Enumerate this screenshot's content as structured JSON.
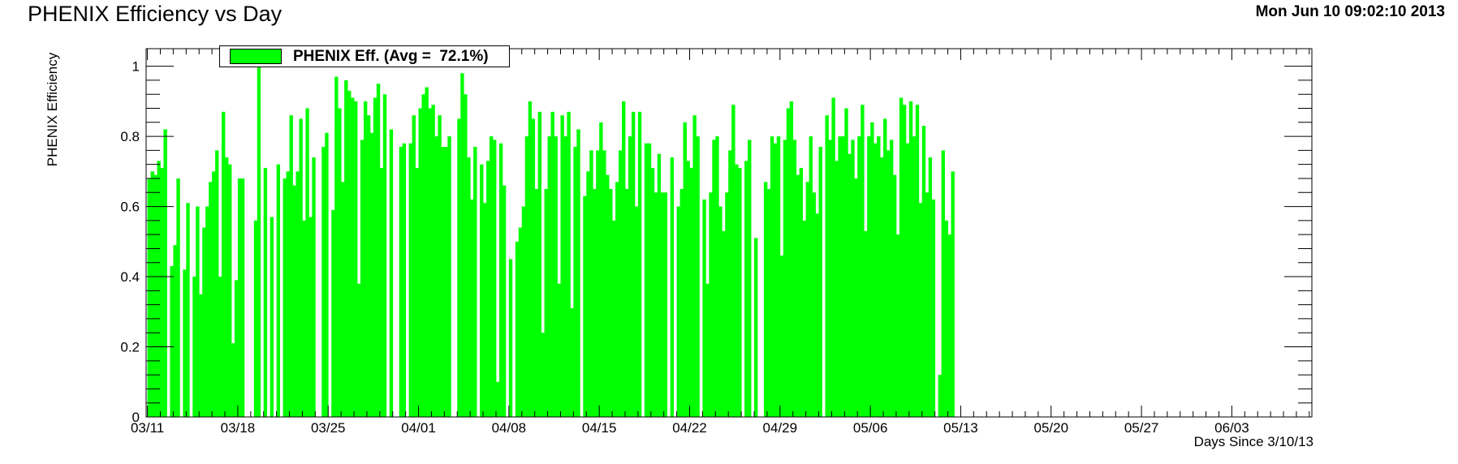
{
  "header": {
    "title": "PHENIX Efficiency vs Day",
    "datestamp": "Mon Jun 10 09:02:10 2013"
  },
  "chart_data": {
    "type": "bar",
    "title": "PHENIX Efficiency vs Day",
    "xlabel": "Days Since 3/10/13",
    "ylabel": "PHENIX Efficiency",
    "xlim": [
      0.9,
      91.2
    ],
    "ylim": [
      0,
      1.05
    ],
    "grid": false,
    "legend": {
      "placement": "top-left",
      "label": "PHENIX Eff. (Avg =  72.1%)",
      "color": "#00ff00"
    },
    "x_ticks": [
      {
        "value": 1,
        "label": "03/11"
      },
      {
        "value": 8,
        "label": "03/18"
      },
      {
        "value": 15,
        "label": "03/25"
      },
      {
        "value": 22,
        "label": "04/01"
      },
      {
        "value": 29,
        "label": "04/08"
      },
      {
        "value": 36,
        "label": "04/15"
      },
      {
        "value": 43,
        "label": "04/22"
      },
      {
        "value": 50,
        "label": "04/29"
      },
      {
        "value": 57,
        "label": "05/06"
      },
      {
        "value": 64,
        "label": "05/13"
      },
      {
        "value": 71,
        "label": "05/20"
      },
      {
        "value": 78,
        "label": "05/27"
      },
      {
        "value": 85,
        "label": "06/03"
      }
    ],
    "y_ticks": [
      {
        "value": 0,
        "label": "0"
      },
      {
        "value": 0.2,
        "label": "0.2"
      },
      {
        "value": 0.4,
        "label": "0.4"
      },
      {
        "value": 0.6,
        "label": "0.6"
      },
      {
        "value": 0.8,
        "label": "0.8"
      },
      {
        "value": 1,
        "label": "1"
      }
    ],
    "series": [
      {
        "color": "#00ff00",
        "points": [
          [
            1.0,
            0.68
          ],
          [
            1.25,
            0.7
          ],
          [
            1.5,
            0.69
          ],
          [
            1.75,
            0.73
          ],
          [
            2.0,
            0.71
          ],
          [
            2.25,
            0.82
          ],
          [
            2.5,
            0.0
          ],
          [
            2.75,
            0.43
          ],
          [
            3.0,
            0.49
          ],
          [
            3.25,
            0.68
          ],
          [
            3.5,
            0.0
          ],
          [
            3.75,
            0.42
          ],
          [
            4.0,
            0.61
          ],
          [
            4.25,
            0.0
          ],
          [
            4.5,
            0.4
          ],
          [
            4.75,
            0.6
          ],
          [
            5.0,
            0.35
          ],
          [
            5.25,
            0.54
          ],
          [
            5.5,
            0.6
          ],
          [
            5.75,
            0.67
          ],
          [
            6.0,
            0.7
          ],
          [
            6.25,
            0.76
          ],
          [
            6.5,
            0.4
          ],
          [
            6.75,
            0.87
          ],
          [
            7.0,
            0.74
          ],
          [
            7.25,
            0.72
          ],
          [
            7.5,
            0.21
          ],
          [
            7.75,
            0.39
          ],
          [
            8.0,
            0.68
          ],
          [
            8.25,
            0.68
          ],
          [
            8.5,
            0.0
          ],
          [
            8.75,
            0.0
          ],
          [
            9.0,
            0.0
          ],
          [
            9.25,
            0.56
          ],
          [
            9.5,
            1.0
          ],
          [
            9.75,
            0.0
          ],
          [
            10.0,
            0.71
          ],
          [
            10.25,
            0.0
          ],
          [
            10.5,
            0.57
          ],
          [
            10.75,
            0.0
          ],
          [
            11.0,
            0.72
          ],
          [
            11.25,
            0.0
          ],
          [
            11.5,
            0.68
          ],
          [
            11.75,
            0.7
          ],
          [
            12.0,
            0.86
          ],
          [
            12.25,
            0.66
          ],
          [
            12.5,
            0.7
          ],
          [
            12.75,
            0.85
          ],
          [
            13.0,
            0.56
          ],
          [
            13.25,
            0.88
          ],
          [
            13.5,
            0.57
          ],
          [
            13.75,
            0.74
          ],
          [
            14.0,
            0.0
          ],
          [
            14.25,
            0.0
          ],
          [
            14.5,
            0.77
          ],
          [
            14.75,
            0.81
          ],
          [
            15.0,
            0.0
          ],
          [
            15.25,
            0.59
          ],
          [
            15.5,
            0.97
          ],
          [
            15.75,
            0.88
          ],
          [
            16.0,
            0.67
          ],
          [
            16.25,
            0.96
          ],
          [
            16.5,
            0.93
          ],
          [
            16.75,
            0.91
          ],
          [
            17.0,
            0.9
          ],
          [
            17.25,
            0.38
          ],
          [
            17.5,
            0.79
          ],
          [
            17.75,
            0.9
          ],
          [
            18.0,
            0.86
          ],
          [
            18.25,
            0.81
          ],
          [
            18.5,
            0.91
          ],
          [
            18.75,
            0.95
          ],
          [
            19.0,
            0.71
          ],
          [
            19.25,
            0.92
          ],
          [
            19.5,
            0.0
          ],
          [
            19.75,
            0.82
          ],
          [
            20.0,
            0.0
          ],
          [
            20.25,
            0.0
          ],
          [
            20.5,
            0.77
          ],
          [
            20.75,
            0.78
          ],
          [
            21.0,
            0.0
          ],
          [
            21.25,
            0.78
          ],
          [
            21.5,
            0.86
          ],
          [
            21.75,
            0.71
          ],
          [
            22.0,
            0.88
          ],
          [
            22.25,
            0.92
          ],
          [
            22.5,
            0.94
          ],
          [
            22.75,
            0.88
          ],
          [
            23.0,
            0.89
          ],
          [
            23.25,
            0.8
          ],
          [
            23.5,
            0.86
          ],
          [
            23.75,
            0.77
          ],
          [
            24.0,
            0.77
          ],
          [
            24.25,
            0.8
          ],
          [
            24.5,
            0.0
          ],
          [
            24.75,
            0.0
          ],
          [
            25.0,
            0.85
          ],
          [
            25.25,
            0.98
          ],
          [
            25.5,
            0.92
          ],
          [
            25.75,
            0.74
          ],
          [
            26.0,
            0.62
          ],
          [
            26.25,
            0.77
          ],
          [
            26.5,
            0.0
          ],
          [
            26.75,
            0.72
          ],
          [
            27.0,
            0.61
          ],
          [
            27.25,
            0.73
          ],
          [
            27.5,
            0.8
          ],
          [
            27.75,
            0.79
          ],
          [
            28.0,
            0.1
          ],
          [
            28.25,
            0.78
          ],
          [
            28.5,
            0.66
          ],
          [
            28.75,
            0.0
          ],
          [
            29.0,
            0.45
          ],
          [
            29.25,
            0.0
          ],
          [
            29.5,
            0.5
          ],
          [
            29.75,
            0.54
          ],
          [
            30.0,
            0.6
          ],
          [
            30.25,
            0.8
          ],
          [
            30.5,
            0.9
          ],
          [
            30.75,
            0.85
          ],
          [
            31.0,
            0.65
          ],
          [
            31.25,
            0.87
          ],
          [
            31.5,
            0.24
          ],
          [
            31.75,
            0.65
          ],
          [
            32.0,
            0.8
          ],
          [
            32.25,
            0.87
          ],
          [
            32.5,
            0.8
          ],
          [
            32.75,
            0.38
          ],
          [
            33.0,
            0.86
          ],
          [
            33.25,
            0.8
          ],
          [
            33.5,
            0.87
          ],
          [
            33.75,
            0.31
          ],
          [
            34.0,
            0.77
          ],
          [
            34.25,
            0.82
          ],
          [
            34.5,
            0.0
          ],
          [
            34.75,
            0.63
          ],
          [
            35.0,
            0.7
          ],
          [
            35.25,
            0.76
          ],
          [
            35.5,
            0.65
          ],
          [
            35.75,
            0.76
          ],
          [
            36.0,
            0.84
          ],
          [
            36.25,
            0.76
          ],
          [
            36.5,
            0.69
          ],
          [
            36.75,
            0.65
          ],
          [
            37.0,
            0.56
          ],
          [
            37.25,
            0.67
          ],
          [
            37.5,
            0.76
          ],
          [
            37.75,
            0.9
          ],
          [
            38.0,
            0.65
          ],
          [
            38.25,
            0.8
          ],
          [
            38.5,
            0.87
          ],
          [
            38.75,
            0.6
          ],
          [
            39.0,
            0.87
          ],
          [
            39.25,
            0.0
          ],
          [
            39.5,
            0.78
          ],
          [
            39.75,
            0.78
          ],
          [
            40.0,
            0.71
          ],
          [
            40.25,
            0.64
          ],
          [
            40.5,
            0.75
          ],
          [
            40.75,
            0.64
          ],
          [
            41.0,
            0.64
          ],
          [
            41.25,
            0.0
          ],
          [
            41.5,
            0.74
          ],
          [
            41.75,
            0.0
          ],
          [
            42.0,
            0.6
          ],
          [
            42.25,
            0.65
          ],
          [
            42.5,
            0.84
          ],
          [
            42.75,
            0.73
          ],
          [
            43.0,
            0.71
          ],
          [
            43.25,
            0.86
          ],
          [
            43.5,
            0.8
          ],
          [
            43.75,
            0.0
          ],
          [
            44.0,
            0.62
          ],
          [
            44.25,
            0.38
          ],
          [
            44.5,
            0.64
          ],
          [
            44.75,
            0.79
          ],
          [
            45.0,
            0.8
          ],
          [
            45.25,
            0.6
          ],
          [
            45.5,
            0.53
          ],
          [
            45.75,
            0.64
          ],
          [
            46.0,
            0.76
          ],
          [
            46.25,
            0.89
          ],
          [
            46.5,
            0.72
          ],
          [
            46.75,
            0.71
          ],
          [
            47.0,
            0.0
          ],
          [
            47.25,
            0.73
          ],
          [
            47.5,
            0.79
          ],
          [
            47.75,
            0.0
          ],
          [
            48.0,
            0.51
          ],
          [
            48.25,
            0.0
          ],
          [
            48.5,
            0.0
          ],
          [
            48.75,
            0.67
          ],
          [
            49.0,
            0.65
          ],
          [
            49.25,
            0.8
          ],
          [
            49.5,
            0.78
          ],
          [
            49.75,
            0.8
          ],
          [
            50.0,
            0.46
          ],
          [
            50.25,
            0.79
          ],
          [
            50.5,
            0.88
          ],
          [
            50.75,
            0.9
          ],
          [
            51.0,
            0.79
          ],
          [
            51.25,
            0.69
          ],
          [
            51.5,
            0.71
          ],
          [
            51.75,
            0.56
          ],
          [
            52.0,
            0.67
          ],
          [
            52.25,
            0.8
          ],
          [
            52.5,
            0.64
          ],
          [
            52.75,
            0.58
          ],
          [
            53.0,
            0.77
          ],
          [
            53.25,
            0.0
          ],
          [
            53.5,
            0.86
          ],
          [
            53.75,
            0.79
          ],
          [
            54.0,
            0.91
          ],
          [
            54.25,
            0.73
          ],
          [
            54.5,
            0.8
          ],
          [
            54.75,
            0.8
          ],
          [
            55.0,
            0.88
          ],
          [
            55.25,
            0.75
          ],
          [
            55.5,
            0.79
          ],
          [
            55.75,
            0.68
          ],
          [
            56.0,
            0.8
          ],
          [
            56.25,
            0.89
          ],
          [
            56.5,
            0.53
          ],
          [
            56.75,
            0.8
          ],
          [
            57.0,
            0.84
          ],
          [
            57.25,
            0.78
          ],
          [
            57.5,
            0.8
          ],
          [
            57.75,
            0.74
          ],
          [
            58.0,
            0.85
          ],
          [
            58.25,
            0.76
          ],
          [
            58.5,
            0.79
          ],
          [
            58.75,
            0.69
          ],
          [
            59.0,
            0.52
          ],
          [
            59.25,
            0.91
          ],
          [
            59.5,
            0.89
          ],
          [
            59.75,
            0.78
          ],
          [
            60.0,
            0.9
          ],
          [
            60.25,
            0.8
          ],
          [
            60.5,
            0.89
          ],
          [
            60.75,
            0.61
          ],
          [
            61.0,
            0.83
          ],
          [
            61.25,
            0.64
          ],
          [
            61.5,
            0.74
          ],
          [
            61.75,
            0.62
          ],
          [
            62.0,
            0.0
          ],
          [
            62.25,
            0.12
          ],
          [
            62.5,
            0.76
          ],
          [
            62.75,
            0.56
          ],
          [
            63.0,
            0.52
          ],
          [
            63.25,
            0.7
          ]
        ]
      }
    ]
  }
}
